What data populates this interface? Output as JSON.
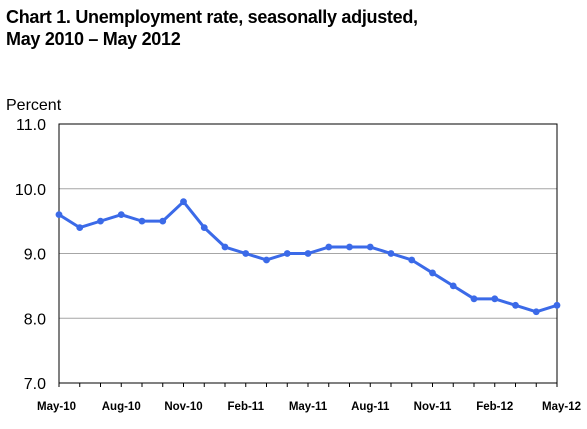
{
  "chart_data": {
    "type": "line",
    "title_line1": "Chart 1. Unemployment rate, seasonally adjusted,",
    "title_line2": "May 2010 – May 2012",
    "ylabel": "Percent",
    "xlabel": "",
    "ylim": [
      7.0,
      11.0
    ],
    "yticks": [
      "7.0",
      "8.0",
      "9.0",
      "10.0",
      "11.0"
    ],
    "ytick_values": [
      7.0,
      8.0,
      9.0,
      10.0,
      11.0
    ],
    "grid": "horizontal",
    "legend": "none",
    "series_color": "#3b6ae8",
    "gridline_color": "#a6a6a6",
    "x": [
      "May-10",
      "Jun-10",
      "Jul-10",
      "Aug-10",
      "Sep-10",
      "Oct-10",
      "Nov-10",
      "Dec-10",
      "Jan-11",
      "Feb-11",
      "Mar-11",
      "Apr-11",
      "May-11",
      "Jun-11",
      "Jul-11",
      "Aug-11",
      "Sep-11",
      "Oct-11",
      "Nov-11",
      "Dec-11",
      "Jan-12",
      "Feb-12",
      "Mar-12",
      "Apr-12",
      "May-12"
    ],
    "xtick_labels": [
      {
        "index": 0,
        "label": "May-10"
      },
      {
        "index": 3,
        "label": "Aug-10"
      },
      {
        "index": 6,
        "label": "Nov-10"
      },
      {
        "index": 9,
        "label": "Feb-11"
      },
      {
        "index": 12,
        "label": "May-11"
      },
      {
        "index": 15,
        "label": "Aug-11"
      },
      {
        "index": 18,
        "label": "Nov-11"
      },
      {
        "index": 21,
        "label": "Feb-12"
      },
      {
        "index": 24,
        "label": "May-12"
      }
    ],
    "series": [
      {
        "values": [
          9.6,
          9.4,
          9.5,
          9.6,
          9.5,
          9.5,
          9.8,
          9.4,
          9.1,
          9.0,
          8.9,
          9.0,
          9.0,
          9.1,
          9.1,
          9.1,
          9.0,
          8.9,
          8.7,
          8.5,
          8.3,
          8.3,
          8.2,
          8.1,
          8.2
        ]
      }
    ]
  }
}
